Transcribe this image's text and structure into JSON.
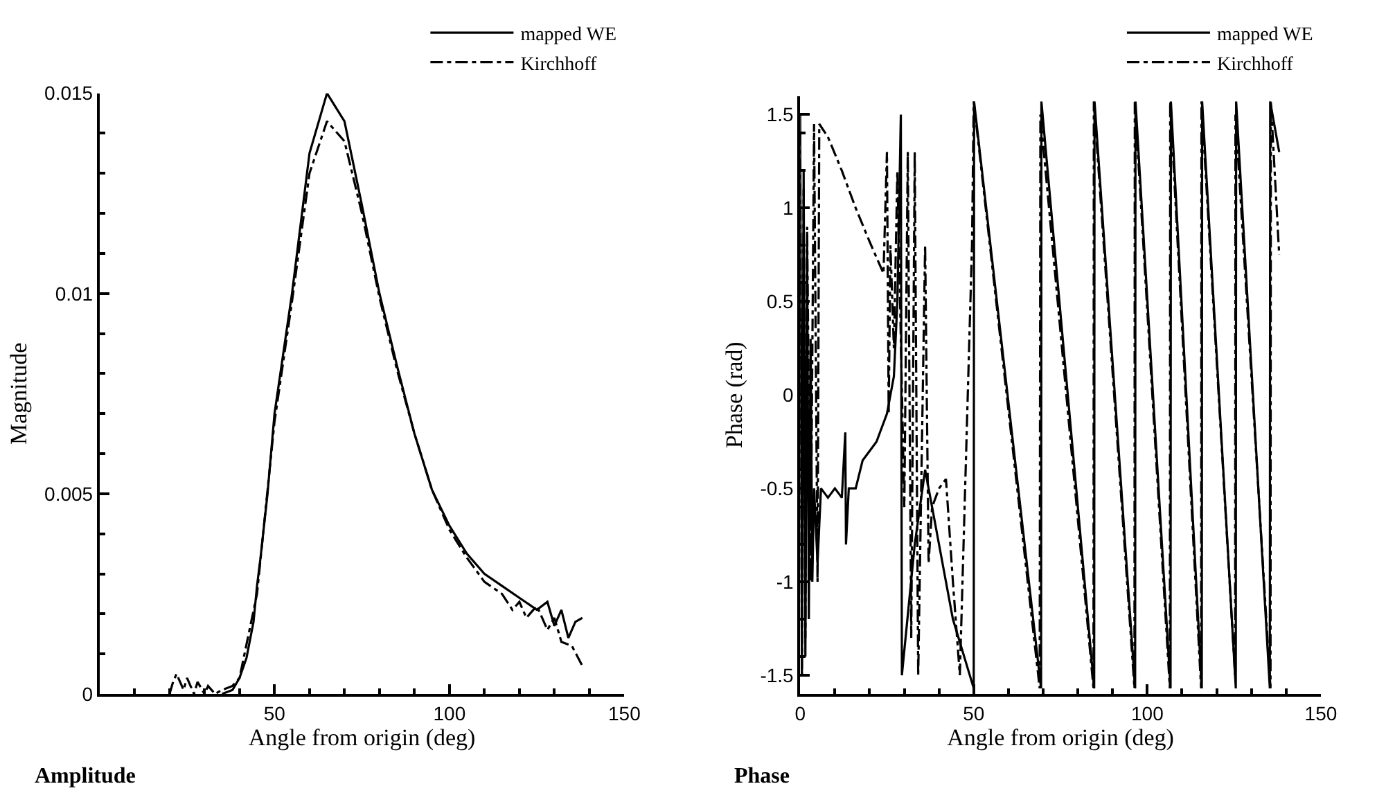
{
  "chart_data": [
    {
      "type": "line",
      "title": "Amplitude",
      "xlabel": "Angle from origin (deg)",
      "ylabel": "Magnitude",
      "xlim": [
        0,
        150
      ],
      "xticks": [
        50,
        100,
        150
      ],
      "ylim": [
        0,
        0.015
      ],
      "yticks": [
        0,
        0.005,
        0.01,
        0.015
      ],
      "legend": "top right",
      "marker": "none",
      "series": [
        {
          "name": "mapped WE",
          "color": "#000000",
          "line_style": "solid",
          "x": [
            35,
            38,
            40,
            42,
            44,
            45,
            46,
            48,
            50,
            55,
            60,
            65,
            70,
            75,
            80,
            85,
            90,
            95,
            100,
            105,
            110,
            115,
            120,
            125,
            128,
            130,
            132,
            134,
            136,
            138
          ],
          "values": [
            0,
            0.0001,
            0.0004,
            0.0009,
            0.0018,
            0.0027,
            0.0034,
            0.005,
            0.007,
            0.01,
            0.0135,
            0.015,
            0.0143,
            0.0122,
            0.01,
            0.0082,
            0.0065,
            0.0051,
            0.0042,
            0.0035,
            0.003,
            0.0027,
            0.0024,
            0.0021,
            0.0023,
            0.0017,
            0.0021,
            0.0014,
            0.0018,
            0.0019
          ]
        },
        {
          "name": "Kirchhoff",
          "color": "#000000",
          "line_style": "dashdot",
          "x": [
            20,
            21,
            22,
            24,
            25,
            27,
            28,
            30,
            31,
            33,
            35,
            38,
            40,
            45,
            50,
            55,
            60,
            65,
            70,
            75,
            80,
            85,
            90,
            95,
            100,
            105,
            110,
            115,
            118,
            120,
            122,
            125,
            128,
            130,
            132,
            135,
            138
          ],
          "values": [
            0,
            0.0003,
            0.0005,
            0.0001,
            0.0004,
            0,
            0.0003,
            0,
            0.0002,
            0,
            0.0001,
            0.0002,
            0.0004,
            0.0025,
            0.0068,
            0.0098,
            0.013,
            0.0143,
            0.0138,
            0.012,
            0.0099,
            0.0081,
            0.0065,
            0.0051,
            0.0041,
            0.0034,
            0.0028,
            0.0025,
            0.0021,
            0.0023,
            0.0019,
            0.0022,
            0.0016,
            0.0019,
            0.0013,
            0.0012,
            0.0007
          ]
        }
      ]
    },
    {
      "type": "line",
      "title": "Phase",
      "xlabel": "Angle from origin (deg)",
      "ylabel": "Phase (rad)",
      "xlim": [
        0,
        150
      ],
      "xticks": [
        0,
        50,
        100,
        150
      ],
      "ylim": [
        -1.6,
        1.6
      ],
      "yticks": [
        -1.5,
        -1,
        -0.5,
        0,
        0.5,
        1,
        1.5
      ],
      "legend": "top right",
      "marker": "none",
      "series": [
        {
          "name": "mapped WE",
          "color": "#000000",
          "line_style": "solid",
          "x": [
            0,
            0.5,
            1,
            1.5,
            2,
            2.5,
            3,
            3.5,
            4,
            5,
            6,
            8,
            10,
            12,
            13,
            13.2,
            14,
            16,
            18,
            22,
            25,
            27,
            28,
            29,
            29.3,
            33,
            36,
            38,
            44,
            50,
            50.1,
            69.4,
            69.5,
            84.7,
            84.8,
            96.5,
            96.6,
            106.7,
            106.8,
            115.7,
            115.8,
            125.5,
            125.6,
            135.3,
            135.4,
            138
          ],
          "values": [
            1.5,
            -1.5,
            1.2,
            -1.4,
            0.8,
            -1.2,
            0.3,
            -1.0,
            -0.5,
            -0.9,
            -0.5,
            -0.55,
            -0.5,
            -0.55,
            -0.2,
            -0.8,
            -0.5,
            -0.5,
            -0.35,
            -0.25,
            -0.1,
            0.1,
            0.5,
            1.5,
            -1.5,
            -0.8,
            -0.4,
            -0.6,
            -1.2,
            -1.57,
            1.57,
            -1.57,
            1.57,
            -1.57,
            1.57,
            -1.57,
            1.57,
            -1.57,
            1.57,
            -1.57,
            1.57,
            -1.57,
            1.57,
            -1.57,
            1.57,
            1.3
          ]
        },
        {
          "name": "Kirchhoff",
          "color": "#000000",
          "line_style": "dashdot",
          "x": [
            0,
            0.5,
            1,
            1.5,
            2,
            3,
            4,
            5,
            5.5,
            8,
            12,
            16,
            20,
            24,
            25,
            25.5,
            26,
            27,
            28,
            30,
            31,
            32,
            33,
            34,
            36,
            37,
            38,
            40,
            42,
            44,
            46,
            49.5,
            50,
            69,
            69.2,
            84.5,
            84.6,
            96.3,
            96.4,
            106.5,
            106.6,
            115.5,
            115.6,
            125.3,
            125.4,
            135.5,
            135.6,
            138
          ],
          "values": [
            1.4,
            -1.5,
            1.1,
            -1.3,
            0.9,
            -1.0,
            1.45,
            -1.0,
            1.45,
            1.38,
            1.2,
            1.0,
            0.82,
            0.65,
            1.3,
            -0.1,
            0.8,
            0.25,
            1.2,
            -0.6,
            1.3,
            -1.3,
            1.3,
            -1.5,
            0.8,
            -0.9,
            -0.6,
            -0.5,
            -0.45,
            -1.0,
            -1.5,
            0.8,
            1.57,
            -1.57,
            1.5,
            -1.57,
            1.57,
            -1.57,
            1.57,
            -1.57,
            1.57,
            -1.57,
            1.57,
            -1.5,
            1.5,
            -1.57,
            1.57,
            0.75
          ]
        }
      ]
    }
  ]
}
